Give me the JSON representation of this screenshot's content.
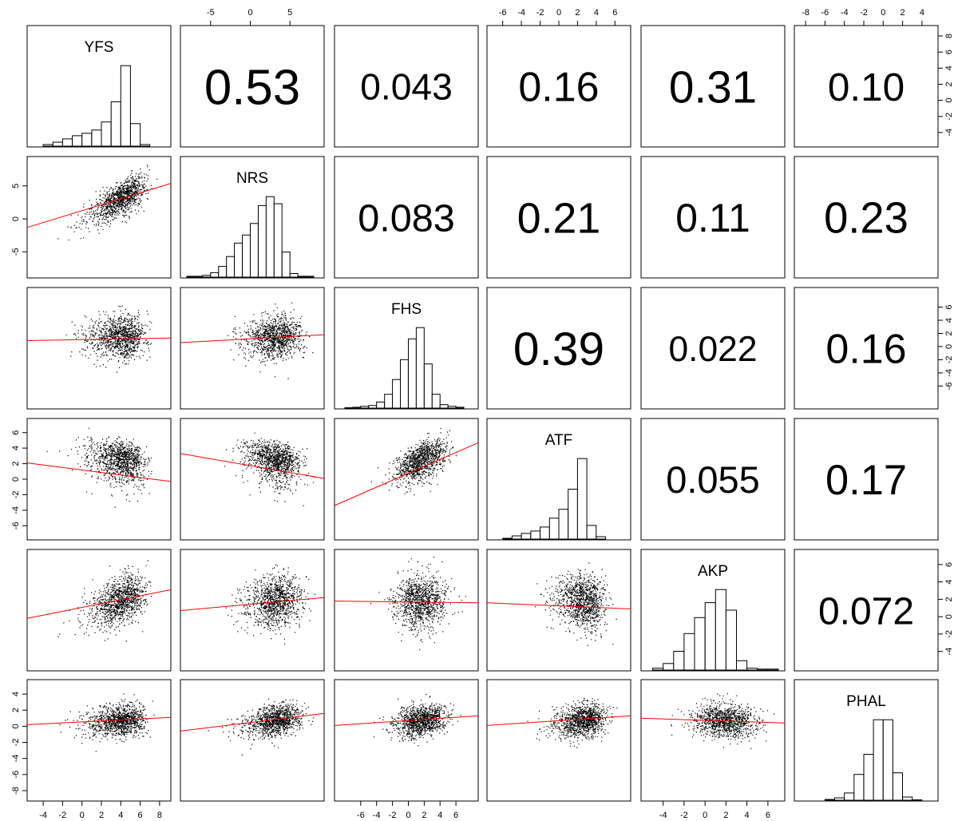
{
  "chart_data": {
    "type": "scatter",
    "title": "",
    "variables": [
      "YFS",
      "NRS",
      "FHS",
      "ATF",
      "AKP",
      "PHAL"
    ],
    "ranges": {
      "YFS": [
        -5,
        8.5
      ],
      "NRS": [
        -8,
        8.5
      ],
      "FHS": [
        -8.5,
        8
      ],
      "ATF": [
        -7,
        7
      ],
      "AKP": [
        -5.5,
        7
      ],
      "PHAL": [
        -8.5,
        5
      ]
    },
    "tick_values": {
      "YFS": [
        -4,
        -2,
        0,
        2,
        4,
        6,
        8
      ],
      "NRS": [
        -5,
        0,
        5
      ],
      "FHS": [
        -6,
        -4,
        -2,
        0,
        2,
        4,
        6
      ],
      "ATF": [
        -6,
        -4,
        -2,
        0,
        2,
        4,
        6
      ],
      "AKP": [
        -4,
        -2,
        0,
        2,
        4,
        6
      ],
      "PHAL": [
        -8,
        -6,
        -4,
        -2,
        0,
        2,
        4
      ]
    },
    "tick_labels": {
      "YFS": [
        "-4",
        "-2",
        "0",
        "2",
        "4",
        "6",
        "8"
      ],
      "NRS": [
        "-5",
        "0",
        "5"
      ],
      "FHS": [
        "-6",
        "-4",
        "-2",
        "0",
        "2",
        "4",
        "6"
      ],
      "ATF": [
        "-6",
        "-4",
        "-2",
        "0",
        "2",
        "4",
        "6"
      ],
      "AKP": [
        "-4",
        "-2",
        "0",
        "2",
        "4",
        "6"
      ],
      "PHAL": [
        "-8",
        "-6",
        "-4",
        "-2",
        "0",
        "2",
        "4"
      ]
    },
    "correlations": [
      {
        "row": "YFS",
        "col": "NRS",
        "label": "0.53"
      },
      {
        "row": "YFS",
        "col": "FHS",
        "label": "0.043"
      },
      {
        "row": "YFS",
        "col": "ATF",
        "label": "0.16"
      },
      {
        "row": "YFS",
        "col": "AKP",
        "label": "0.31"
      },
      {
        "row": "YFS",
        "col": "PHAL",
        "label": "0.10"
      },
      {
        "row": "NRS",
        "col": "FHS",
        "label": "0.083"
      },
      {
        "row": "NRS",
        "col": "ATF",
        "label": "0.21"
      },
      {
        "row": "NRS",
        "col": "AKP",
        "label": "0.11"
      },
      {
        "row": "NRS",
        "col": "PHAL",
        "label": "0.23"
      },
      {
        "row": "FHS",
        "col": "ATF",
        "label": "0.39"
      },
      {
        "row": "FHS",
        "col": "AKP",
        "label": "0.022"
      },
      {
        "row": "FHS",
        "col": "PHAL",
        "label": "0.16"
      },
      {
        "row": "ATF",
        "col": "AKP",
        "label": "0.055"
      },
      {
        "row": "ATF",
        "col": "PHAL",
        "label": "0.17"
      },
      {
        "row": "AKP",
        "col": "PHAL",
        "label": "0.072"
      }
    ],
    "histograms": {
      "YFS": {
        "bin_edges": [
          -4,
          -3,
          -2,
          -1,
          0,
          1,
          2,
          3,
          4,
          5,
          6,
          7
        ],
        "counts": [
          2,
          5,
          9,
          13,
          16,
          20,
          30,
          55,
          100,
          28,
          2
        ]
      },
      "NRS": {
        "bin_edges": [
          -8,
          -7,
          -6,
          -5,
          -4,
          -3,
          -2,
          -1,
          0,
          1,
          2,
          3,
          4,
          5,
          6,
          7,
          8
        ],
        "counts": [
          1,
          1,
          2,
          5,
          12,
          23,
          38,
          47,
          60,
          80,
          90,
          82,
          28,
          4,
          1,
          1
        ]
      },
      "FHS": {
        "bin_edges": [
          -8,
          -7,
          -6,
          -5,
          -4,
          -3,
          -2,
          -1,
          0,
          1,
          2,
          3,
          4,
          5,
          6,
          7
        ],
        "counts": [
          0.5,
          1,
          2,
          3,
          7,
          16,
          33,
          56,
          80,
          93,
          51,
          16,
          4,
          2,
          1
        ]
      },
      "ATF": {
        "bin_edges": [
          -6,
          -5,
          -4,
          -3,
          -2,
          -1,
          0,
          1,
          2,
          3,
          4,
          5
        ],
        "counts": [
          1,
          4,
          7,
          10,
          15,
          26,
          37,
          62,
          100,
          17,
          3
        ]
      },
      "AKP": {
        "bin_edges": [
          -5,
          -4,
          -3,
          -2,
          -1,
          0,
          1,
          2,
          3,
          4,
          5,
          6,
          7
        ],
        "counts": [
          2,
          7,
          20,
          39,
          56,
          72,
          86,
          64,
          10,
          2,
          1,
          1
        ]
      },
      "PHAL": {
        "bin_edges": [
          -6,
          -5,
          -4,
          -3,
          -2,
          -1,
          0,
          1,
          2,
          3,
          4
        ],
        "counts": [
          1,
          3,
          9,
          32,
          57,
          100,
          100,
          34,
          4,
          0.5
        ]
      }
    },
    "regression_lines": [
      {
        "x": "YFS",
        "y": "NRS",
        "y_at_min": -1.3,
        "y_at_max": 5.4
      },
      {
        "x": "YFS",
        "y": "FHS",
        "y_at_min": 0.9,
        "y_at_max": 1.3
      },
      {
        "x": "NRS",
        "y": "FHS",
        "y_at_min": 0.6,
        "y_at_max": 1.8
      },
      {
        "x": "YFS",
        "y": "ATF",
        "y_at_min": 2.1,
        "y_at_max": -0.3
      },
      {
        "x": "NRS",
        "y": "ATF",
        "y_at_min": 3.3,
        "y_at_max": 0.1
      },
      {
        "x": "FHS",
        "y": "ATF",
        "y_at_min": -3.4,
        "y_at_max": 4.7
      },
      {
        "x": "YFS",
        "y": "AKP",
        "y_at_min": -0.2,
        "y_at_max": 3.1
      },
      {
        "x": "NRS",
        "y": "AKP",
        "y_at_min": 0.7,
        "y_at_max": 2.2
      },
      {
        "x": "FHS",
        "y": "AKP",
        "y_at_min": 1.8,
        "y_at_max": 1.6
      },
      {
        "x": "ATF",
        "y": "AKP",
        "y_at_min": 1.6,
        "y_at_max": 0.9
      },
      {
        "x": "YFS",
        "y": "PHAL",
        "y_at_min": 0.2,
        "y_at_max": 1.1
      },
      {
        "x": "NRS",
        "y": "PHAL",
        "y_at_min": -0.6,
        "y_at_max": 1.6
      },
      {
        "x": "FHS",
        "y": "PHAL",
        "y_at_min": 0.1,
        "y_at_max": 1.3
      },
      {
        "x": "ATF",
        "y": "PHAL",
        "y_at_min": 0.1,
        "y_at_max": 1.3
      },
      {
        "x": "AKP",
        "y": "PHAL",
        "y_at_min": 1.0,
        "y_at_max": 0.4
      }
    ],
    "point_clouds": {
      "YFS": {
        "center": 3.8,
        "spread": 1.5,
        "skew": -2.6
      },
      "NRS": {
        "center": 3.0,
        "spread": 1.8,
        "skew": -1.6
      },
      "FHS": {
        "center": 1.5,
        "spread": 1.6,
        "skew": -0.8
      },
      "ATF": {
        "center": 2.4,
        "spread": 1.4,
        "skew": -2.2
      },
      "AKP": {
        "center": 1.8,
        "spread": 1.5,
        "skew": -0.9
      },
      "PHAL": {
        "center": 0.7,
        "spread": 1.0,
        "skew": -0.5
      }
    },
    "colors": {
      "points": "#000000",
      "regression": "#ff0000",
      "frame": "#000000",
      "bars": "#ffffff"
    },
    "grid": false,
    "legend": "none"
  }
}
